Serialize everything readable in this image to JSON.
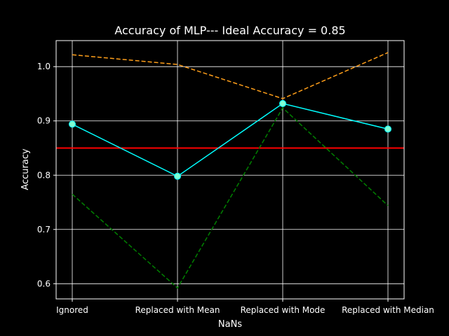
{
  "chart_data": {
    "type": "line",
    "title": "Accuracy of MLP--- Ideal Accuracy = 0.85",
    "xlabel": "NaNs",
    "ylabel": "Accuracy",
    "categories": [
      "Ignored",
      "Replaced with Mean",
      "Replaced with Mode",
      "Replaced with Median"
    ],
    "ylim": [
      0.572,
      1.048
    ],
    "yticks": [
      0.6,
      0.7,
      0.8,
      0.9,
      1.0
    ],
    "ytick_labels": [
      "0.6",
      "0.7",
      "0.8",
      "0.9",
      "1.0"
    ],
    "grid": true,
    "series": [
      {
        "values": [
          0.894,
          0.798,
          0.932,
          0.885
        ],
        "color": "#00ffff",
        "style": "solid",
        "markers": true
      },
      {
        "values": [
          1.022,
          1.004,
          0.941,
          1.026
        ],
        "color": "#ff9f1a",
        "style": "dashed",
        "markers": false
      },
      {
        "values": [
          0.765,
          0.592,
          0.924,
          0.744
        ],
        "color": "#008000",
        "style": "dashed",
        "markers": false
      }
    ],
    "reference_line": {
      "value": 0.85,
      "color": "#ff0000"
    },
    "colors": {
      "background": "#000000",
      "axes": "#ffffff",
      "grid": "#ffffff",
      "marker_fill": "#7fffd4"
    }
  }
}
